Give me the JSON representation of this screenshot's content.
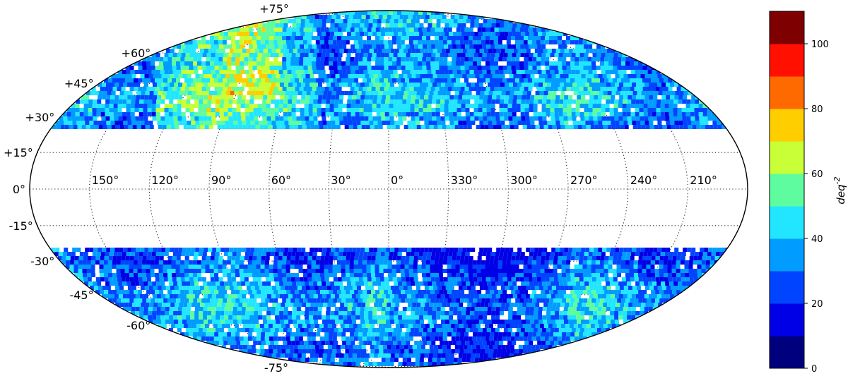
{
  "chart_data": {
    "type": "heatmap",
    "projection": "mollweide",
    "grid": true,
    "lat_ticks": [
      "+75°",
      "+60°",
      "+45°",
      "+30°",
      "+15°",
      "0°",
      "-15°",
      "-30°",
      "-45°",
      "-60°",
      "-75°"
    ],
    "lon_ticks": [
      "150°",
      "120°",
      "90°",
      "60°",
      "30°",
      "0°",
      "330°",
      "300°",
      "270°",
      "240°",
      "210°"
    ],
    "coverage": "sky regions with |galactic latitude| greater than about 25°; the band around 0° is empty",
    "colorbar": {
      "label": "deq",
      "label_exponent": "-2",
      "tick_labels": [
        "0",
        "20",
        "40",
        "60",
        "80",
        "100"
      ],
      "range": [
        0,
        110
      ],
      "colors": [
        "#00007f",
        "#0000e6",
        "#0044ff",
        "#009cff",
        "#22e6ff",
        "#5efc9f",
        "#c8ff36",
        "#ffce00",
        "#ff6a00",
        "#ff1000",
        "#7f0000"
      ]
    }
  }
}
